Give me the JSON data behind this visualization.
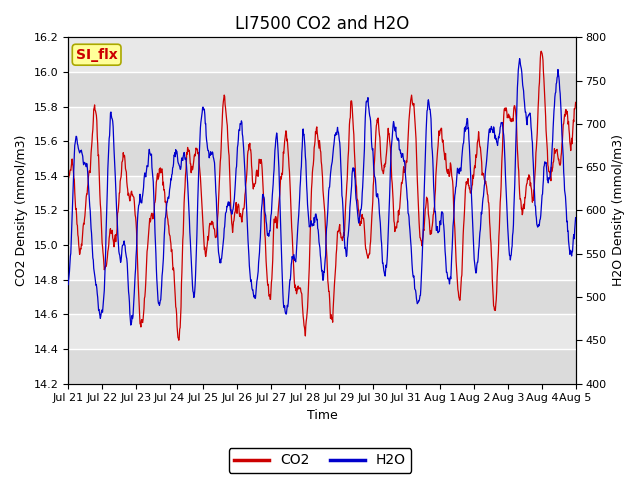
{
  "title": "LI7500 CO2 and H2O",
  "xlabel": "Time",
  "ylabel_left": "CO2 Density (mmol/m3)",
  "ylabel_right": "H2O Density (mmol/m3)",
  "co2_ylim": [
    14.2,
    16.2
  ],
  "h2o_ylim": [
    400,
    800
  ],
  "co2_yticks": [
    14.2,
    14.4,
    14.6,
    14.8,
    15.0,
    15.2,
    15.4,
    15.6,
    15.8,
    16.0,
    16.2
  ],
  "h2o_yticks": [
    400,
    450,
    500,
    550,
    600,
    650,
    700,
    750,
    800
  ],
  "xtick_labels": [
    "Jul 21",
    "Jul 22",
    "Jul 23",
    "Jul 24",
    "Jul 25",
    "Jul 26",
    "Jul 27",
    "Jul 28",
    "Jul 29",
    "Jul 30",
    "Jul 31",
    "Aug 1",
    "Aug 2",
    "Aug 3",
    "Aug 4",
    "Aug 5"
  ],
  "co2_color": "#cc0000",
  "h2o_color": "#0000cc",
  "legend_label_co2": "CO2",
  "legend_label_h2o": "H2O",
  "annotation_text": "SI_flx",
  "annotation_bg": "#ffff99",
  "annotation_border": "#aaa800",
  "plot_bg_light": "#e8e8e8",
  "plot_bg_dark": "#d0d0d0",
  "grid_color": "white",
  "title_fontsize": 12,
  "axis_label_fontsize": 9,
  "tick_fontsize": 8,
  "legend_fontsize": 10
}
